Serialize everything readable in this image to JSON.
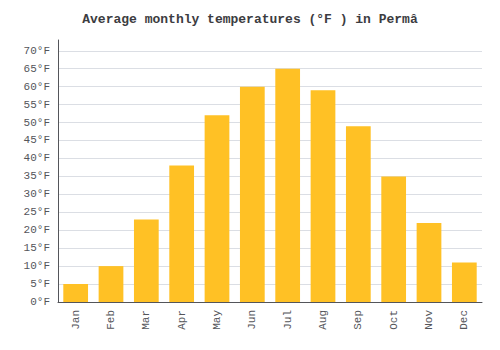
{
  "chart_data": {
    "type": "bar",
    "title": "Average monthly temperatures (°F ) in Permâ",
    "categories": [
      "Jan",
      "Feb",
      "Mar",
      "Apr",
      "May",
      "Jun",
      "Jul",
      "Aug",
      "Sep",
      "Oct",
      "Nov",
      "Dec"
    ],
    "values": [
      5,
      10,
      23,
      38,
      52,
      60,
      65,
      59,
      49,
      35,
      22,
      11
    ],
    "color": "#FFC125",
    "ylim": [
      0,
      73
    ],
    "yticks": [
      {
        "value": 0,
        "label": "0°F"
      },
      {
        "value": 5,
        "label": "5°F"
      },
      {
        "value": 10,
        "label": "10°F"
      },
      {
        "value": 15,
        "label": "15°F"
      },
      {
        "value": 20,
        "label": "20°F"
      },
      {
        "value": 25,
        "label": "25°F"
      },
      {
        "value": 30,
        "label": "30°F"
      },
      {
        "value": 35,
        "label": "35°F"
      },
      {
        "value": 40,
        "label": "40°F"
      },
      {
        "value": 45,
        "label": "45°F"
      },
      {
        "value": 50,
        "label": "50°F"
      },
      {
        "value": 55,
        "label": "55°F"
      },
      {
        "value": 60,
        "label": "60°F"
      },
      {
        "value": 65,
        "label": "65°F"
      },
      {
        "value": 70,
        "label": "70°F"
      }
    ],
    "grid": true
  }
}
